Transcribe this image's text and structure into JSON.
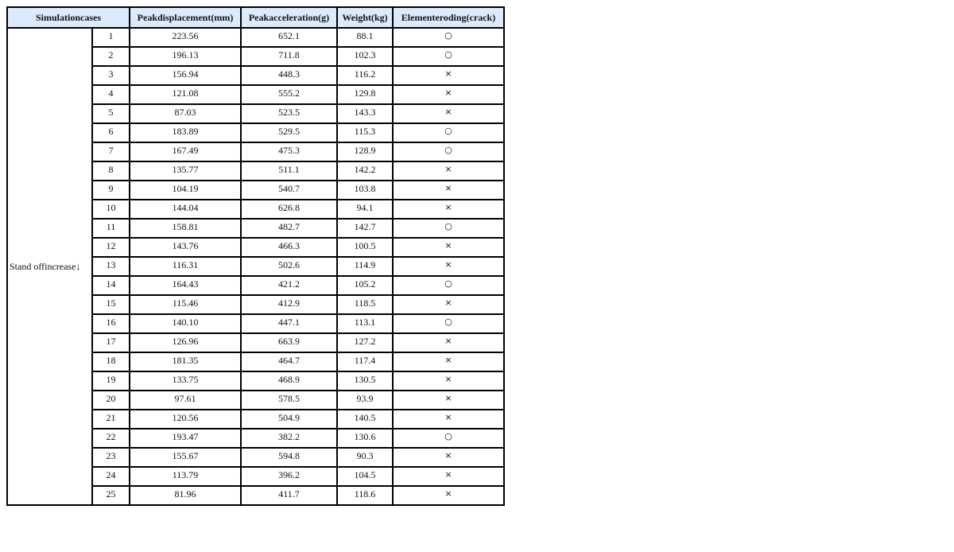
{
  "headers": {
    "cases": "Simulationcases",
    "displacement": "Peakdisplacement(mm)",
    "acceleration": "Peakacceleration(g)",
    "weight": "Weight(kg)",
    "eroding": "Elementeroding(crack)"
  },
  "group_label": "Stand offincrease↓",
  "rows": [
    {
      "case": "1",
      "disp": "223.56",
      "acc": "652.1",
      "w": "88.1",
      "crack": "○"
    },
    {
      "case": "2",
      "disp": "196.13",
      "acc": "711.8",
      "w": "102.3",
      "crack": "○"
    },
    {
      "case": "3",
      "disp": "156.94",
      "acc": "448.3",
      "w": "116.2",
      "crack": "×"
    },
    {
      "case": "4",
      "disp": "121.08",
      "acc": "555.2",
      "w": "129.8",
      "crack": "×"
    },
    {
      "case": "5",
      "disp": "87.03",
      "acc": "523.5",
      "w": "143.3",
      "crack": "×"
    },
    {
      "case": "6",
      "disp": "183.89",
      "acc": "529.5",
      "w": "115.3",
      "crack": "○"
    },
    {
      "case": "7",
      "disp": "167.49",
      "acc": "475.3",
      "w": "128.9",
      "crack": "○"
    },
    {
      "case": "8",
      "disp": "135.77",
      "acc": "511.1",
      "w": "142.2",
      "crack": "×"
    },
    {
      "case": "9",
      "disp": "104.19",
      "acc": "540.7",
      "w": "103.8",
      "crack": "×"
    },
    {
      "case": "10",
      "disp": "144.04",
      "acc": "626.8",
      "w": "94.1",
      "crack": "×"
    },
    {
      "case": "11",
      "disp": "158.81",
      "acc": "482.7",
      "w": "142.7",
      "crack": "○"
    },
    {
      "case": "12",
      "disp": "143.76",
      "acc": "466.3",
      "w": "100.5",
      "crack": "×"
    },
    {
      "case": "13",
      "disp": "116.31",
      "acc": "502.6",
      "w": "114.9",
      "crack": "×"
    },
    {
      "case": "14",
      "disp": "164.43",
      "acc": "421.2",
      "w": "105.2",
      "crack": "○"
    },
    {
      "case": "15",
      "disp": "115.46",
      "acc": "412.9",
      "w": "118.5",
      "crack": "×"
    },
    {
      "case": "16",
      "disp": "140.10",
      "acc": "447.1",
      "w": "113.1",
      "crack": "○"
    },
    {
      "case": "17",
      "disp": "126.96",
      "acc": "663.9",
      "w": "127.2",
      "crack": "×"
    },
    {
      "case": "18",
      "disp": "181.35",
      "acc": "464.7",
      "w": "117.4",
      "crack": "×"
    },
    {
      "case": "19",
      "disp": "133.75",
      "acc": "468.9",
      "w": "130.5",
      "crack": "×"
    },
    {
      "case": "20",
      "disp": "97.61",
      "acc": "578.5",
      "w": "93.9",
      "crack": "×"
    },
    {
      "case": "21",
      "disp": "120.56",
      "acc": "504.9",
      "w": "140.5",
      "crack": "×"
    },
    {
      "case": "22",
      "disp": "193.47",
      "acc": "382.2",
      "w": "130.6",
      "crack": "○"
    },
    {
      "case": "23",
      "disp": "155.67",
      "acc": "594.8",
      "w": "90.3",
      "crack": "×"
    },
    {
      "case": "24",
      "disp": "113.79",
      "acc": "396.2",
      "w": "104.5",
      "crack": "×"
    },
    {
      "case": "25",
      "disp": "81.96",
      "acc": "411.7",
      "w": "118.6",
      "crack": "×"
    }
  ]
}
